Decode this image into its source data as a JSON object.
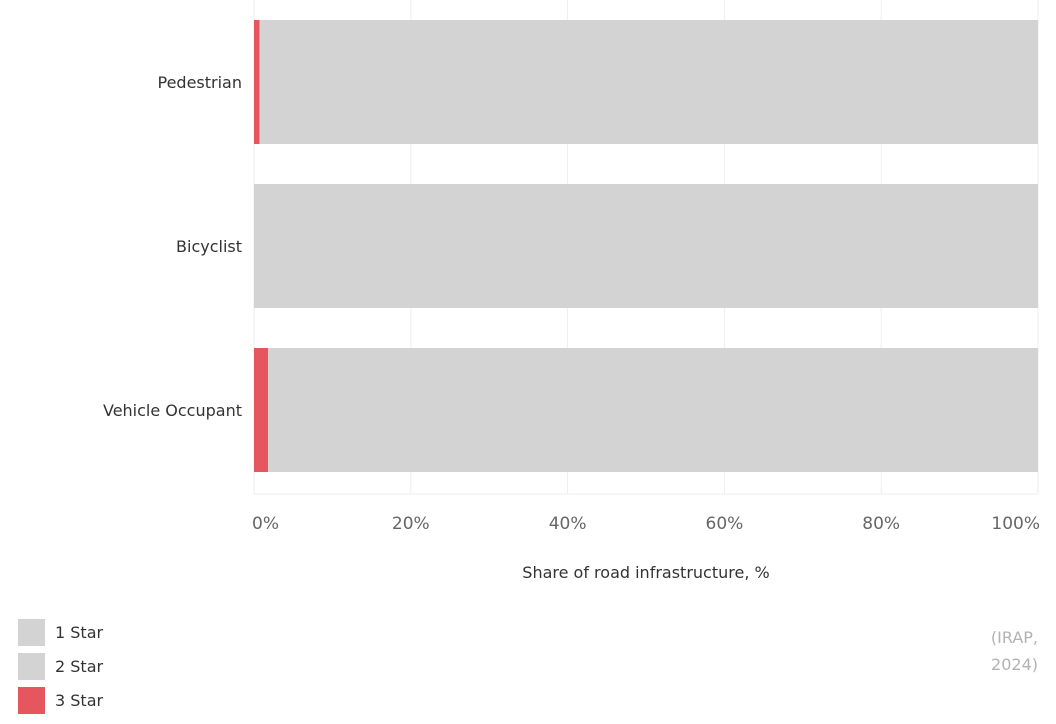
{
  "chart_data": {
    "type": "bar",
    "orientation": "horizontal",
    "stacked": true,
    "categories": [
      "Pedestrian",
      "Bicyclist",
      "Vehicle Occupant"
    ],
    "series": [
      {
        "name": "1 Star",
        "color": "#d3d3d3",
        "values": [
          99.3,
          100,
          98.2
        ]
      },
      {
        "name": "2 Star",
        "color": "#d3d3d3",
        "values": [
          0,
          0,
          0
        ]
      },
      {
        "name": "3 Star",
        "color": "#e5565f",
        "values": [
          0.7,
          0,
          1.8
        ]
      }
    ],
    "stack_order": [
      "3 Star",
      "2 Star",
      "1 Star"
    ],
    "xlim": [
      0,
      100
    ],
    "x_ticks": [
      "0%",
      "20%",
      "40%",
      "60%",
      "80%",
      "100%"
    ],
    "xlabel": "Share of road infrastructure, %",
    "ylabel": "",
    "title": "",
    "grid": true,
    "legend_position": "bottom-left"
  },
  "legend": [
    {
      "label": "1 Star",
      "color": "#d3d3d3"
    },
    {
      "label": "2 Star",
      "color": "#d3d3d3"
    },
    {
      "label": "3 Star",
      "color": "#e5565f"
    }
  ],
  "source": "(IRAP, 2024)"
}
